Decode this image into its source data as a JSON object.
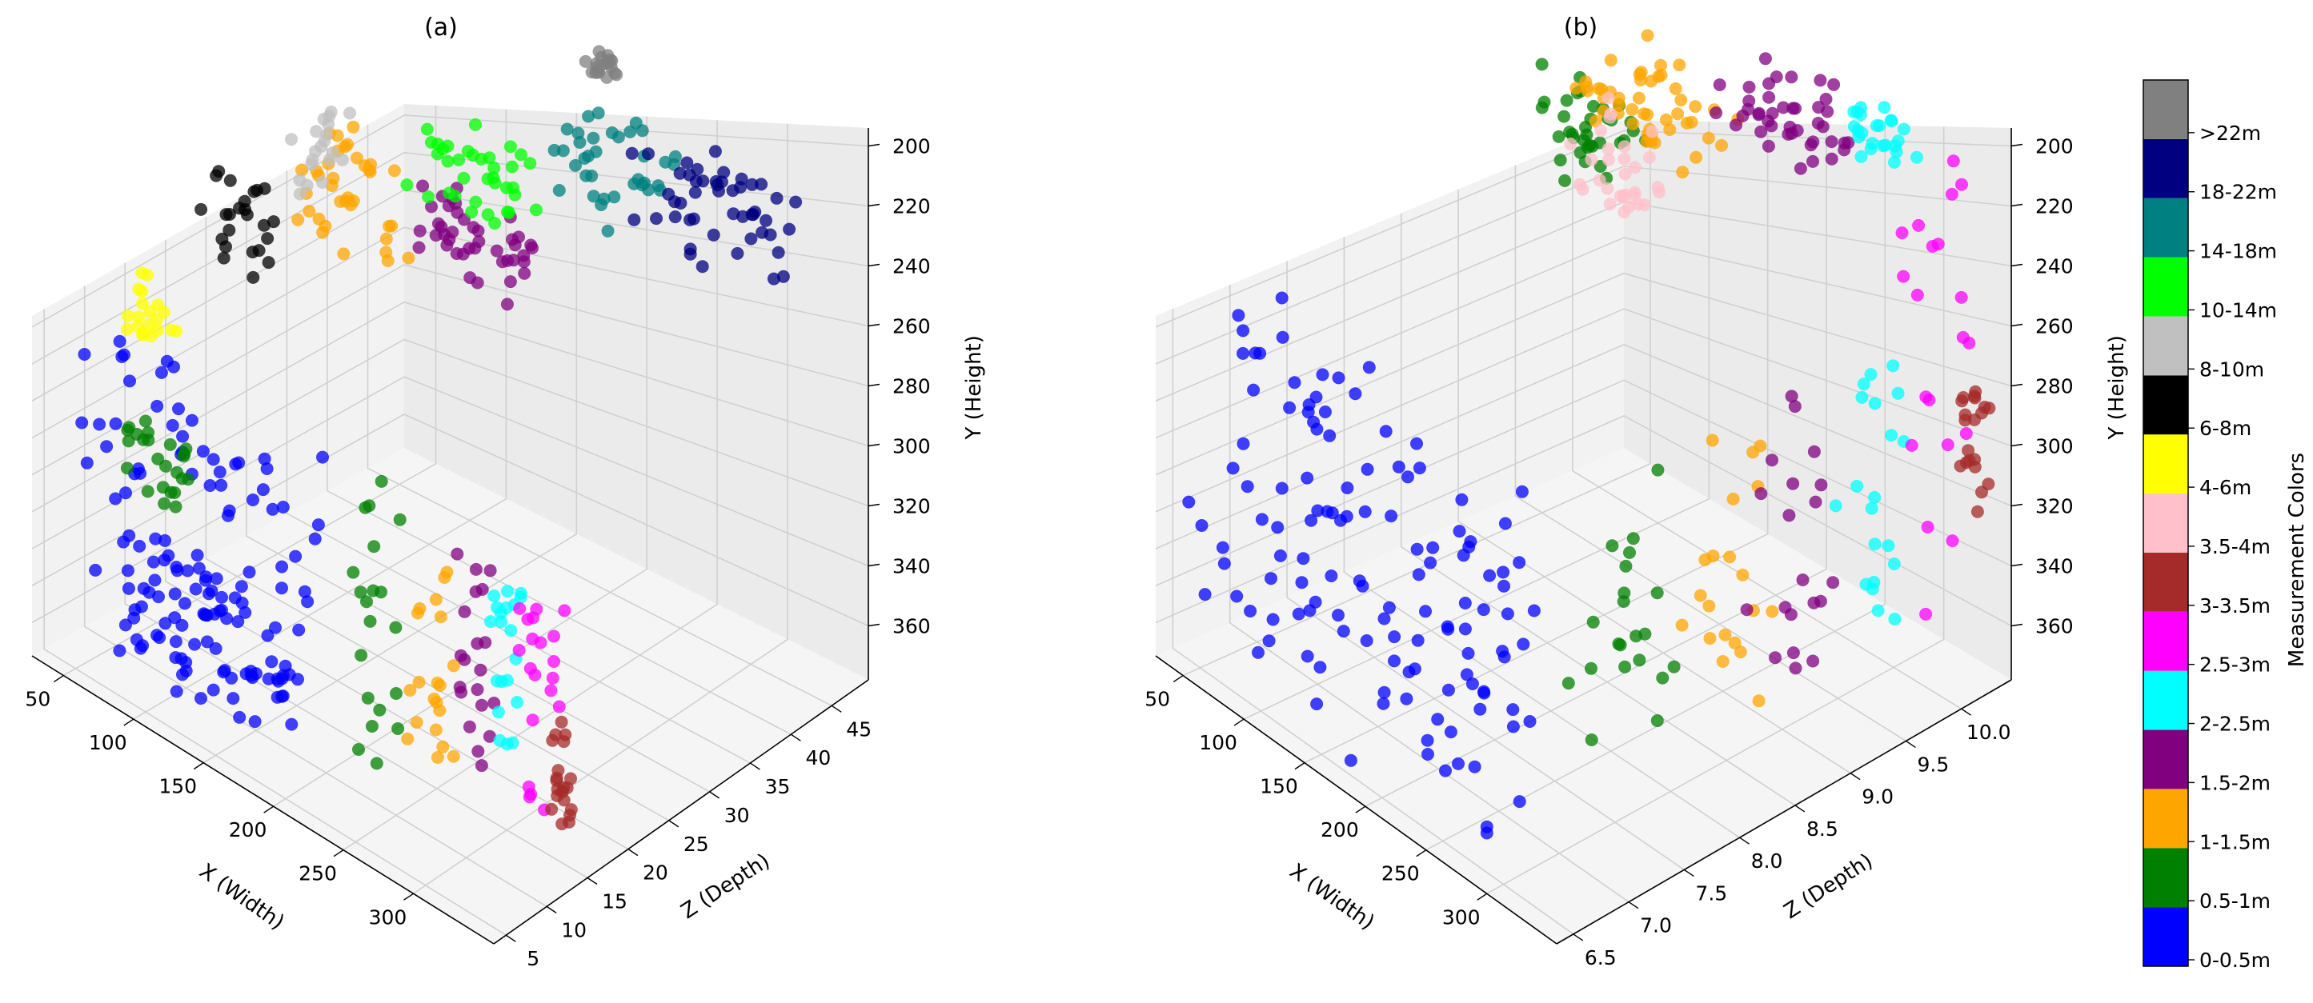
{
  "chart_data": [
    {
      "type": "scatter",
      "panel": "a",
      "title": "(a)",
      "xlabel": "X (Width)",
      "ylabel": "Y (Height)",
      "zlabel": "Z (Depth)",
      "x_ticks": [
        "50",
        "100",
        "150",
        "200",
        "250",
        "300"
      ],
      "depth_ticks": [
        "5",
        "10",
        "15",
        "20",
        "25",
        "30",
        "35",
        "40",
        "45"
      ],
      "height_ticks": [
        "200",
        "220",
        "240",
        "260",
        "280",
        "300",
        "320",
        "340",
        "360"
      ],
      "xlim": [
        30,
        320
      ],
      "zlim": [
        5,
        45
      ],
      "ylim": [
        360,
        200
      ],
      "series": [
        {
          "name": "0-0.5m",
          "clusters": [
            {
              "x": [
                40,
                180
              ],
              "z": [
                8,
                12
              ],
              "y": [
                270,
                350
              ]
            },
            {
              "x": [
                60,
                160
              ],
              "z": [
                8,
                11
              ],
              "y": [
                320,
                360
              ]
            }
          ]
        },
        {
          "name": "0.5-1m",
          "clusters": [
            {
              "x": [
                200,
                225
              ],
              "z": [
                10,
                12
              ],
              "y": [
                270,
                350
              ]
            },
            {
              "x": [
                40,
                80
              ],
              "z": [
                12,
                14
              ],
              "y": [
                300,
                320
              ]
            }
          ]
        },
        {
          "name": "1-1.5m",
          "clusters": [
            {
              "x": [
                225,
                250
              ],
              "z": [
                11,
                13
              ],
              "y": [
                280,
                345
              ]
            },
            {
              "x": [
                100,
                160
              ],
              "z": [
                20,
                26
              ],
              "y": [
                220,
                245
              ]
            }
          ]
        },
        {
          "name": "1.5-2m",
          "clusters": [
            {
              "x": [
                250,
                270
              ],
              "z": [
                12,
                14
              ],
              "y": [
                280,
                345
              ]
            },
            {
              "x": [
                150,
                220
              ],
              "z": [
                24,
                28
              ],
              "y": [
                225,
                245
              ]
            }
          ]
        },
        {
          "name": "2-2.5m",
          "clusters": [
            {
              "x": [
                265,
                285
              ],
              "z": [
                13,
                15
              ],
              "y": [
                275,
                345
              ]
            }
          ]
        },
        {
          "name": "2.5-3m",
          "clusters": [
            {
              "x": [
                280,
                300
              ],
              "z": [
                14,
                16
              ],
              "y": [
                265,
                350
              ]
            }
          ]
        },
        {
          "name": "3-3.5m",
          "clusters": [
            {
              "x": [
                295,
                305
              ],
              "z": [
                15,
                16
              ],
              "y": [
                320,
                350
              ]
            }
          ]
        },
        {
          "name": "4-6m",
          "clusters": [
            {
              "x": [
                40,
                60
              ],
              "z": [
                12,
                16
              ],
              "y": [
                265,
                280
              ]
            }
          ]
        },
        {
          "name": "6-8m",
          "clusters": [
            {
              "x": [
                60,
                100
              ],
              "z": [
                16,
                20
              ],
              "y": [
                230,
                260
              ]
            }
          ]
        },
        {
          "name": "8-10m",
          "clusters": [
            {
              "x": [
                90,
                110
              ],
              "z": [
                22,
                26
              ],
              "y": [
                220,
                240
              ]
            }
          ]
        },
        {
          "name": "10-14m",
          "clusters": [
            {
              "x": [
                140,
                200
              ],
              "z": [
                26,
                32
              ],
              "y": [
                215,
                235
              ]
            }
          ]
        },
        {
          "name": "14-18m",
          "clusters": [
            {
              "x": [
                200,
                260
              ],
              "z": [
                30,
                36
              ],
              "y": [
                205,
                225
              ]
            }
          ]
        },
        {
          "name": "18-22m",
          "clusters": [
            {
              "x": [
                220,
                300
              ],
              "z": [
                36,
                42
              ],
              "y": [
                215,
                240
              ]
            }
          ]
        },
        {
          "name": "> 22m",
          "clusters": [
            {
              "x": [
                180,
                200
              ],
              "z": [
                38,
                40
              ],
              "y": [
                205,
                210
              ]
            }
          ]
        }
      ]
    },
    {
      "type": "scatter",
      "panel": "b",
      "title": "(b)",
      "xlabel": "X (Width)",
      "ylabel": "Y (Height)",
      "zlabel": "Z (Depth)",
      "x_ticks": [
        "50",
        "100",
        "150",
        "200",
        "250",
        "300"
      ],
      "depth_ticks": [
        "6.5",
        "7.0",
        "7.5",
        "8.0",
        "8.5",
        "9.0",
        "9.5",
        "10.0"
      ],
      "height_ticks": [
        "200",
        "220",
        "240",
        "260",
        "280",
        "300",
        "320",
        "340",
        "360"
      ],
      "xlim": [
        30,
        320
      ],
      "zlim": [
        6.4,
        10.3
      ],
      "ylim": [
        360,
        200
      ],
      "series": [
        {
          "name": "0-0.5m",
          "clusters": [
            {
              "x": [
                40,
                250
              ],
              "z": [
                6.5,
                7.4
              ],
              "y": [
                260,
                360
              ]
            }
          ]
        },
        {
          "name": "0.5-1m",
          "clusters": [
            {
              "x": [
                230,
                265
              ],
              "z": [
                7.5,
                8.1
              ],
              "y": [
                270,
                355
              ]
            },
            {
              "x": [
                100,
                160
              ],
              "z": [
                8.6,
                9.2
              ],
              "y": [
                215,
                235
              ]
            }
          ]
        },
        {
          "name": "1-1.5m",
          "clusters": [
            {
              "x": [
                260,
                290
              ],
              "z": [
                8.1,
                8.7
              ],
              "y": [
                270,
                350
              ]
            },
            {
              "x": [
                120,
                200
              ],
              "z": [
                8.7,
                9.4
              ],
              "y": [
                205,
                225
              ]
            }
          ]
        },
        {
          "name": "1.5-2m",
          "clusters": [
            {
              "x": [
                270,
                300
              ],
              "z": [
                8.6,
                9.2
              ],
              "y": [
                265,
                345
              ]
            },
            {
              "x": [
                190,
                260
              ],
              "z": [
                9.2,
                9.8
              ],
              "y": [
                200,
                215
              ]
            }
          ]
        },
        {
          "name": "2-2.5m",
          "clusters": [
            {
              "x": [
                280,
                310
              ],
              "z": [
                9.2,
                9.7
              ],
              "y": [
                260,
                335
              ]
            },
            {
              "x": [
                250,
                290
              ],
              "z": [
                9.6,
                9.9
              ],
              "y": [
                200,
                210
              ]
            }
          ]
        },
        {
          "name": "2.5-3m",
          "clusters": [
            {
              "x": [
                290,
                318
              ],
              "z": [
                9.6,
                10.1
              ],
              "y": [
                205,
                330
              ]
            }
          ]
        },
        {
          "name": "3-3.5m",
          "clusters": [
            {
              "x": [
                300,
                320
              ],
              "z": [
                10.0,
                10.2
              ],
              "y": [
                270,
                310
              ]
            }
          ]
        },
        {
          "name": "3.5-4m",
          "clusters": [
            {
              "x": [
                120,
                170
              ],
              "z": [
                8.8,
                9.2
              ],
              "y": [
                225,
                245
              ]
            }
          ]
        }
      ]
    }
  ],
  "colorbar": {
    "label": "Measurement Colors",
    "items": [
      {
        "label": "0-0.5m",
        "color": "#0000ff"
      },
      {
        "label": "0.5-1m",
        "color": "#008000"
      },
      {
        "label": "1-1.5m",
        "color": "#ffa500"
      },
      {
        "label": "1.5-2m",
        "color": "#800080"
      },
      {
        "label": "2-2.5m",
        "color": "#00ffff"
      },
      {
        "label": "2.5-3m",
        "color": "#ff00ff"
      },
      {
        "label": "3-3.5m",
        "color": "#a52a2a"
      },
      {
        "label": "3.5-4m",
        "color": "#ffc0cb"
      },
      {
        "label": "4-6m",
        "color": "#ffff00"
      },
      {
        "label": "6-8m",
        "color": "#000000"
      },
      {
        "label": "8-10m",
        "color": "#c0c0c0"
      },
      {
        "label": "10-14m",
        "color": "#00ff00"
      },
      {
        "label": "14-18m",
        "color": "#008080"
      },
      {
        "label": "18-22m",
        "color": "#000080"
      },
      {
        "label": ">22m",
        "color": "#808080"
      }
    ]
  }
}
